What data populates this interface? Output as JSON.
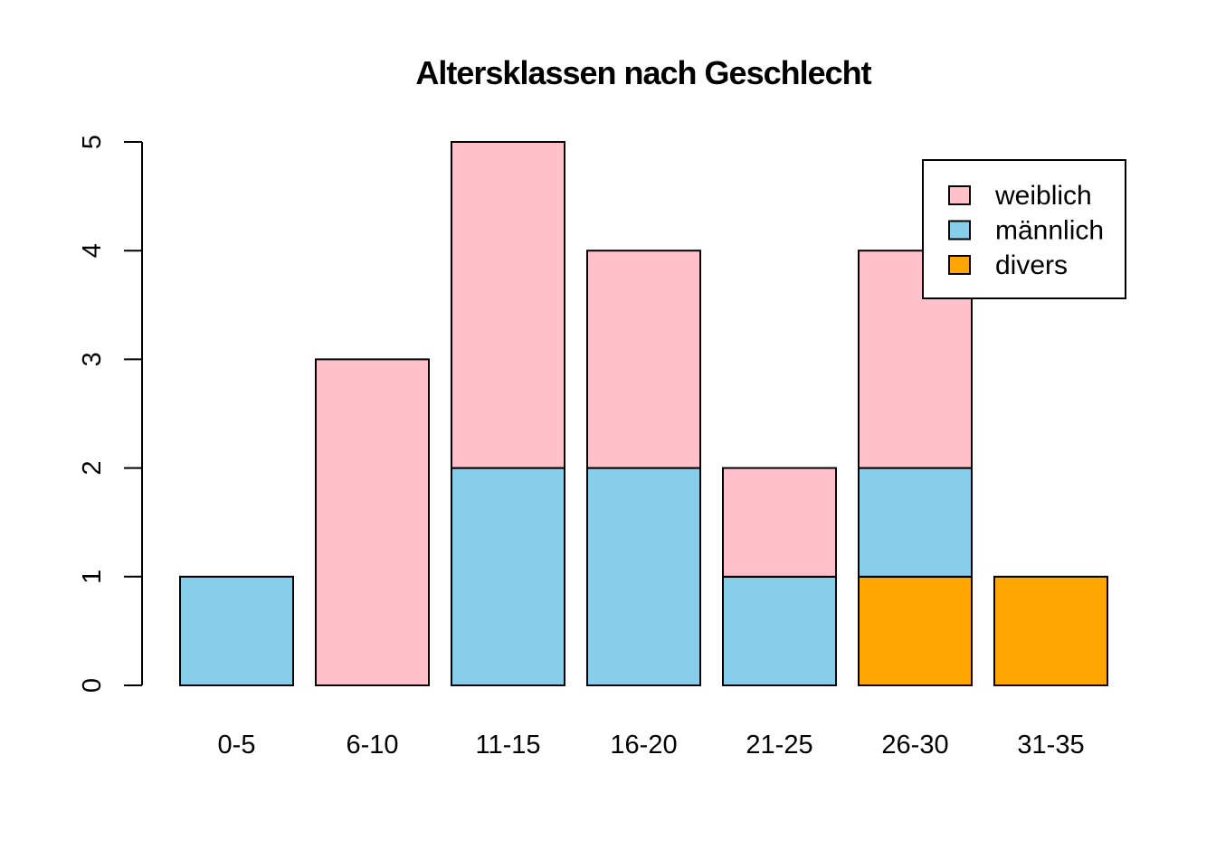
{
  "chart_data": {
    "type": "bar",
    "stacked": true,
    "title": "Altersklassen nach Geschlecht",
    "xlabel": "",
    "ylabel": "",
    "categories": [
      "0-5",
      "6-10",
      "11-15",
      "16-20",
      "21-25",
      "26-30",
      "31-35"
    ],
    "series": [
      {
        "name": "divers",
        "color": "#FFA500",
        "values": [
          0,
          0,
          0,
          0,
          0,
          1,
          1
        ]
      },
      {
        "name": "männlich",
        "color": "#87CEEB",
        "values": [
          1,
          0,
          2,
          2,
          1,
          1,
          0
        ]
      },
      {
        "name": "weiblich",
        "color": "#FFC0CB",
        "values": [
          0,
          3,
          3,
          2,
          1,
          2,
          0
        ]
      }
    ],
    "ylim": [
      0,
      5
    ],
    "yticks": [
      "0",
      "1",
      "2",
      "3",
      "4",
      "5"
    ],
    "grid": false,
    "legend": {
      "position": "top-right",
      "entries": [
        {
          "label": "weiblich",
          "color": "#FFC0CB"
        },
        {
          "label": "männlich",
          "color": "#87CEEB"
        },
        {
          "label": "divers",
          "color": "#FFA500"
        }
      ]
    }
  }
}
